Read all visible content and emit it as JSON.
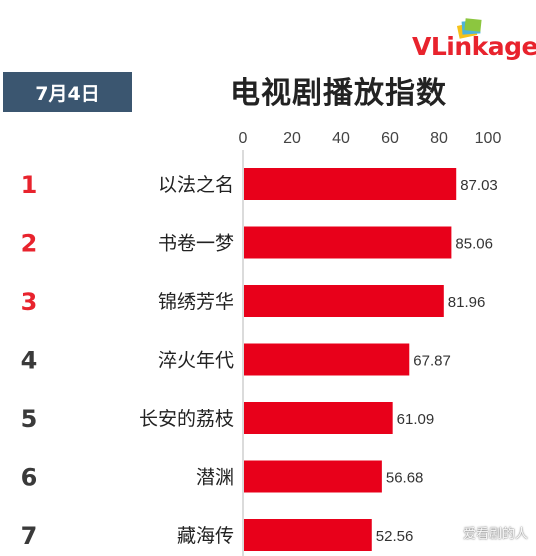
{
  "header": {
    "date": "7月4日",
    "title": "电视剧播放指数",
    "logo_text": "VLinkage"
  },
  "watermark": "爱看剧的人",
  "colors": {
    "bar": "#e8001a",
    "rank_top": "#e8232d",
    "rank_rest": "#3a3a3a",
    "badge": "#3b5670"
  },
  "chart_data": {
    "type": "bar",
    "orientation": "horizontal",
    "title": "电视剧播放指数",
    "xlim": [
      0,
      100
    ],
    "x_ticks": [
      "0",
      "20",
      "40",
      "60",
      "80",
      "100"
    ],
    "grid": false,
    "ranks": [
      "1",
      "2",
      "3",
      "4",
      "5",
      "6",
      "7"
    ],
    "categories": [
      "以法之名",
      "书卷一梦",
      "锦绣芳华",
      "淬火年代",
      "长安的荔枝",
      "潜渊",
      "藏海传"
    ],
    "values": [
      87.03,
      85.06,
      81.96,
      67.87,
      61.09,
      56.68,
      52.56
    ],
    "value_labels": [
      "87.03",
      "85.06",
      "81.96",
      "67.87",
      "61.09",
      "56.68",
      "52.56"
    ]
  }
}
